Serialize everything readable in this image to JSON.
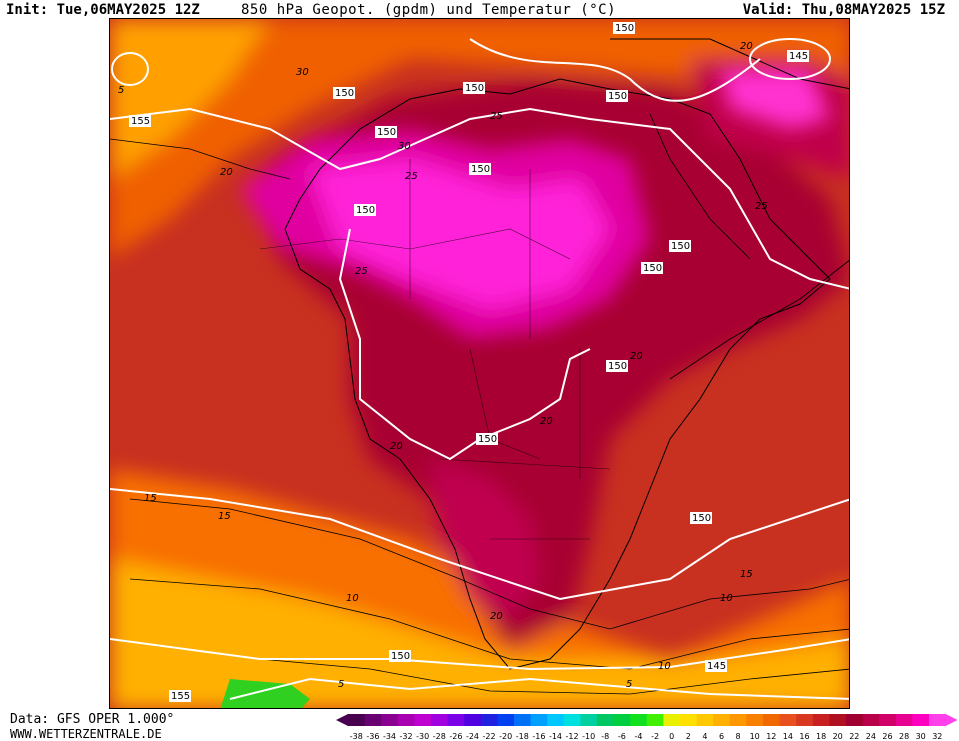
{
  "header": {
    "init": "Init: Tue,06MAY2025 12Z",
    "title": "850 hPa Geopot. (gpdm) und Temperatur (°C)",
    "valid": "Valid: Thu,08MAY2025 15Z"
  },
  "footer": {
    "source": "Data: GFS OPER 1.000°",
    "website": "WWW.WETTERZENTRALE.DE"
  },
  "colorbar": {
    "ticks": [
      "-38",
      "-36",
      "-34",
      "-32",
      "-30",
      "-28",
      "-26",
      "-24",
      "-22",
      "-20",
      "-18",
      "-16",
      "-14",
      "-12",
      "-10",
      "-8",
      "-6",
      "-4",
      "-2",
      "0",
      "2",
      "4",
      "6",
      "8",
      "10",
      "12",
      "14",
      "16",
      "18",
      "20",
      "22",
      "24",
      "26",
      "28",
      "30",
      "32"
    ],
    "colors": [
      "#4a0050",
      "#680070",
      "#8a0090",
      "#a800b0",
      "#c000d0",
      "#a000e0",
      "#7a00e8",
      "#5000e0",
      "#2020e0",
      "#0040f0",
      "#0070f8",
      "#00a0ff",
      "#00c8ff",
      "#00e0e0",
      "#00d0a0",
      "#00c860",
      "#00d040",
      "#10e020",
      "#40f000",
      "#e8f000",
      "#ffe000",
      "#ffc800",
      "#ffb000",
      "#ff9800",
      "#f88000",
      "#f06800",
      "#e85020",
      "#d83820",
      "#c82020",
      "#b01020",
      "#a00030",
      "#b80048",
      "#d00068",
      "#e80090",
      "#ff00c0",
      "#ff40e8"
    ]
  },
  "map": {
    "isotherm_labels": [
      "30",
      "30",
      "25",
      "25",
      "25",
      "25",
      "20",
      "20",
      "20",
      "20",
      "20",
      "20",
      "15",
      "15",
      "15",
      "10",
      "10",
      "10",
      "5",
      "5",
      "5"
    ],
    "geopotential_labels": [
      "150",
      "145",
      "150",
      "150",
      "150",
      "150",
      "150",
      "150",
      "150",
      "150",
      "150",
      "150",
      "155",
      "150",
      "150",
      "145",
      "155"
    ]
  }
}
